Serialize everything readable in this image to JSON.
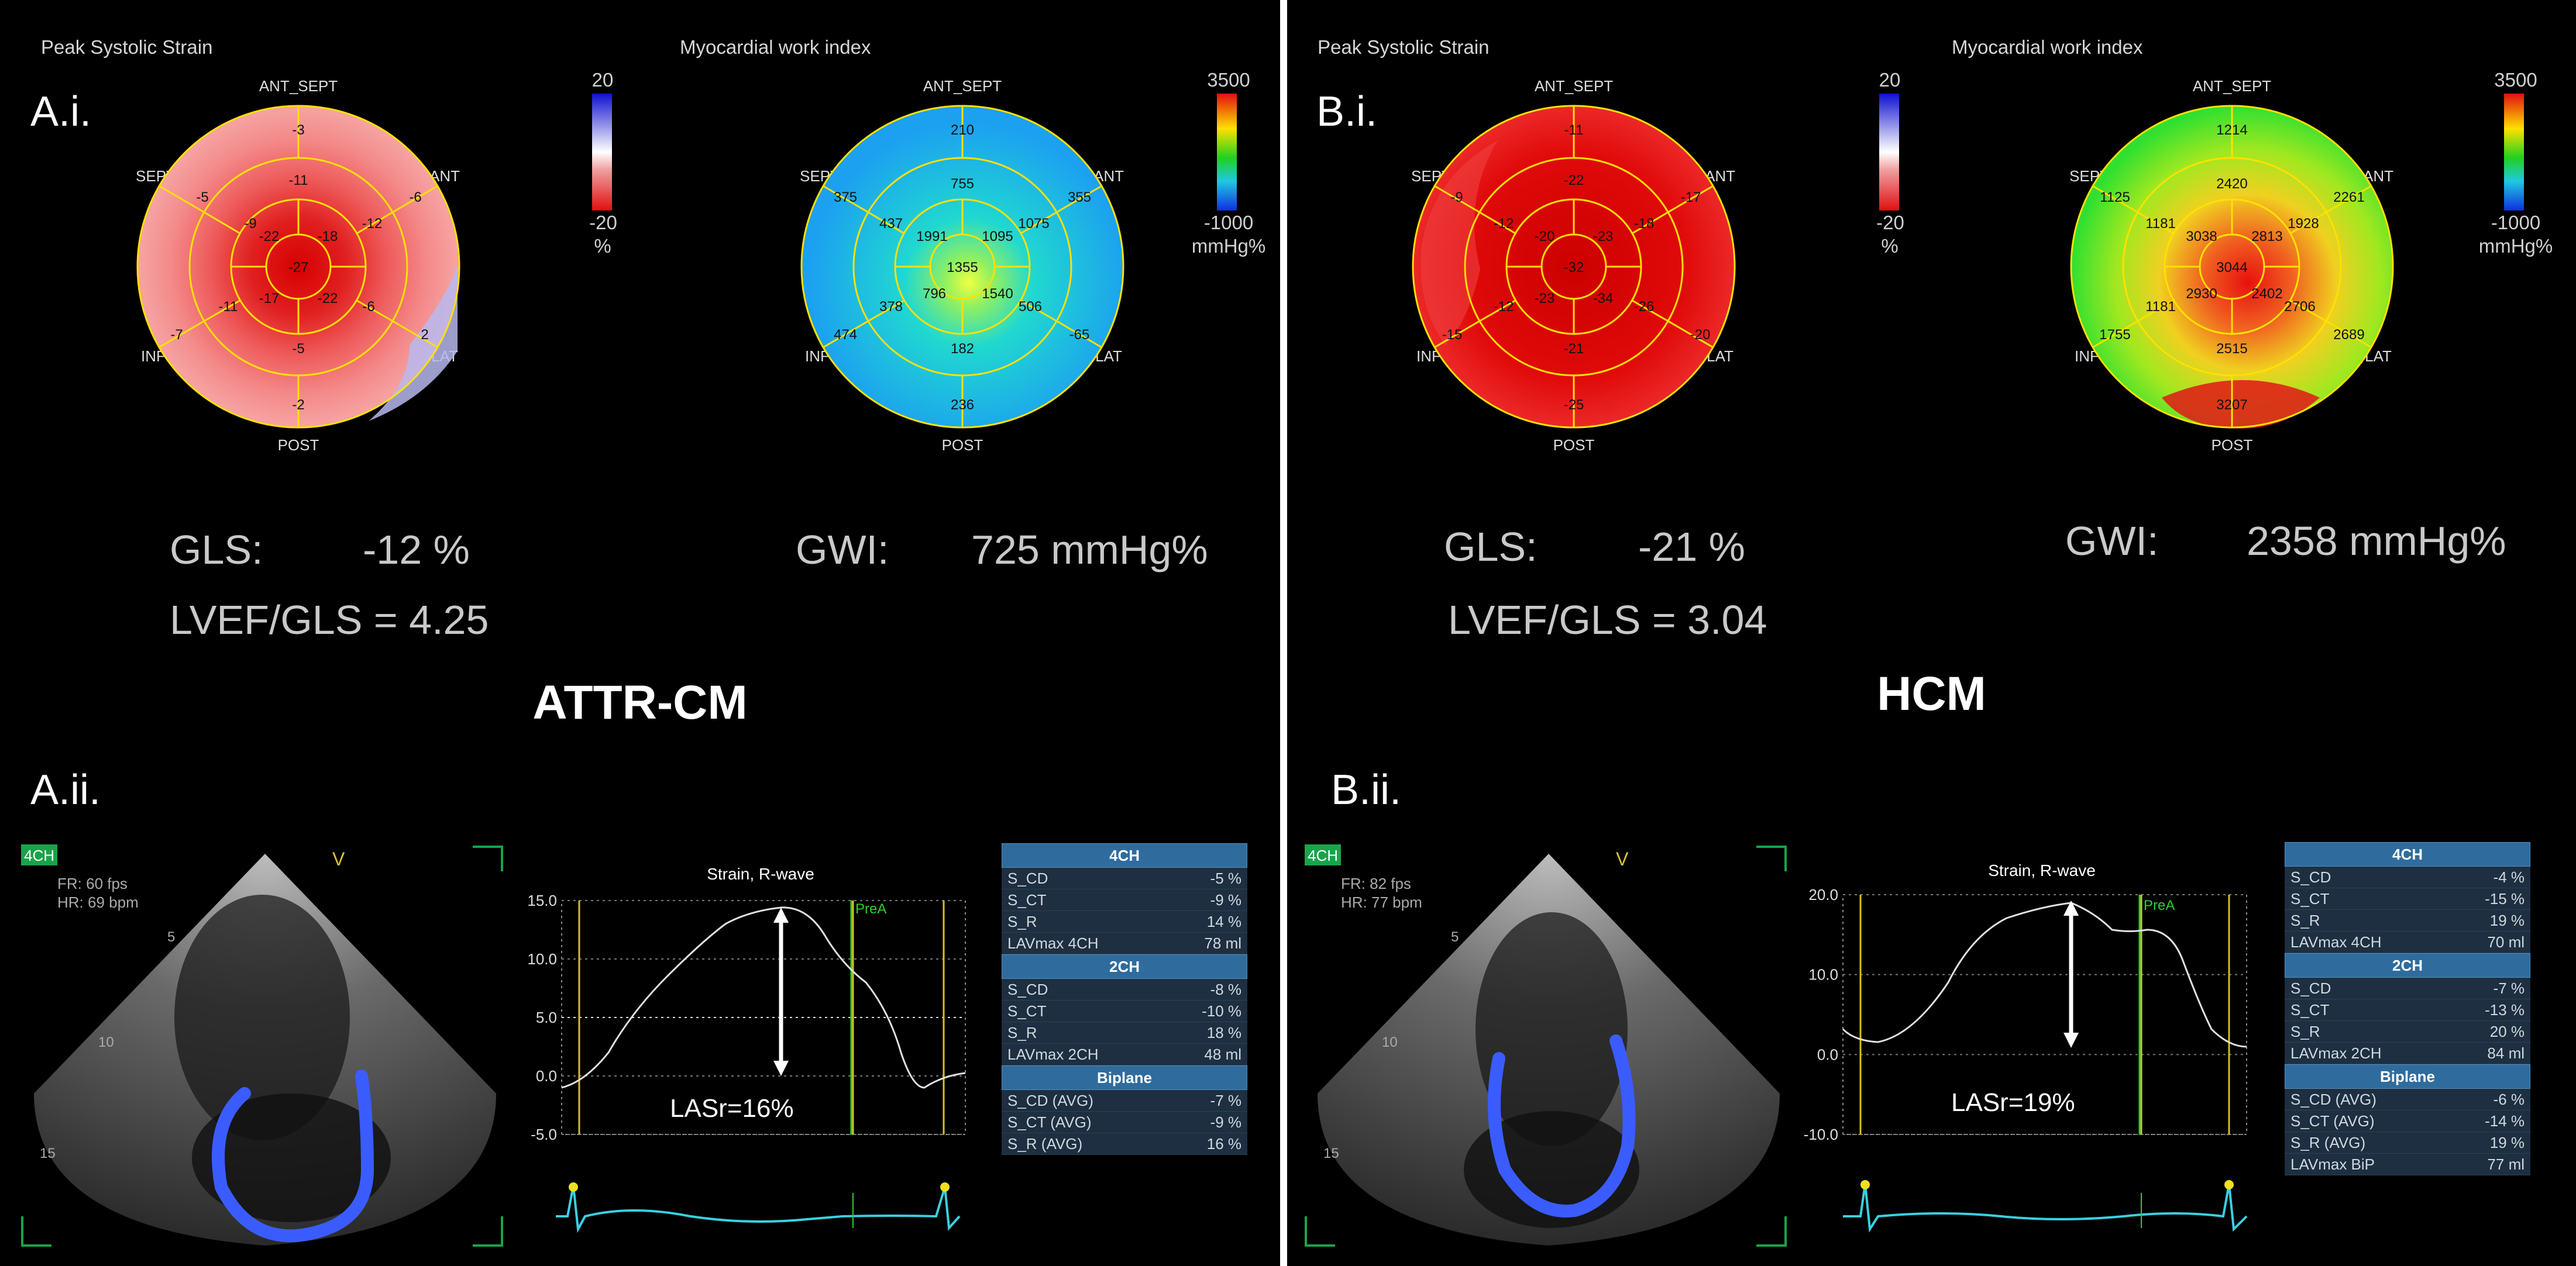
{
  "panel_a": {
    "headers": {
      "strain": "Peak Systolic Strain",
      "work": "Myocardial work index"
    },
    "label_top": "A.i.",
    "label_bottom": "A.ii.",
    "diagnosis": "ATTR-CM",
    "gls_label": "GLS:",
    "gls_value": "-12 %",
    "gwi_label": "GWI:",
    "gwi_value": "725 mmHg%",
    "ratio": "LVEF/GLS = 4.25",
    "strain_scale": {
      "max": "20",
      "min": "-20",
      "unit": "%"
    },
    "work_scale": {
      "max": "3500",
      "min": "-1000",
      "unit": "mmHg%"
    },
    "orientation": {
      "ant_sept": "ANT_SEPT",
      "ant": "ANT",
      "lat": "LAT",
      "post": "POST",
      "inf": "INF",
      "sept": "SEPT"
    },
    "strain_values": {
      "outer": [
        "-3",
        "-6",
        "2",
        "-2",
        "-7",
        "-5"
      ],
      "mid": [
        "-11",
        "-12",
        "-6",
        "-5",
        "-11",
        "-9"
      ],
      "apical": [
        "-18",
        "-22",
        "-17",
        "-22"
      ],
      "apex": "-27"
    },
    "work_values": {
      "outer": [
        "210",
        "355",
        "-65",
        "236",
        "474",
        "375"
      ],
      "mid": [
        "755",
        "1075",
        "506",
        "182",
        "378",
        "437"
      ],
      "apical": [
        "1095",
        "1540",
        "796",
        "1991"
      ],
      "apex": "1355"
    },
    "echo": {
      "view": "4CH",
      "fr": "FR: 60 fps",
      "hr": "HR: 69 bpm",
      "marker": "V",
      "depths": [
        "5",
        "10",
        "15"
      ]
    },
    "graph": {
      "title": "Strain, R-wave",
      "marker": "PreA",
      "lasr": "LASr=16%",
      "ymax": 15,
      "ymin": -5,
      "ticks": [
        "15.0",
        "10.0",
        "5.0",
        "0.0",
        "-5.0"
      ]
    },
    "table": [
      {
        "title": "4CH",
        "rows": [
          [
            "S_CD",
            "-5 %"
          ],
          [
            "S_CT",
            "-9 %"
          ],
          [
            "S_R",
            "14 %"
          ],
          [
            "LAVmax 4CH",
            "78 ml"
          ]
        ]
      },
      {
        "title": "2CH",
        "rows": [
          [
            "S_CD",
            "-8 %"
          ],
          [
            "S_CT",
            "-10 %"
          ],
          [
            "S_R",
            "18 %"
          ],
          [
            "LAVmax 2CH",
            "48 ml"
          ]
        ]
      },
      {
        "title": "Biplane",
        "rows": [
          [
            "S_CD (AVG)",
            "-7 %"
          ],
          [
            "S_CT (AVG)",
            "-9 %"
          ],
          [
            "S_R (AVG)",
            "16 %"
          ]
        ]
      }
    ]
  },
  "panel_b": {
    "headers": {
      "strain": "Peak Systolic Strain",
      "work": "Myocardial work index"
    },
    "label_top": "B.i.",
    "label_bottom": "B.ii.",
    "diagnosis": "HCM",
    "gls_label": "GLS:",
    "gls_value": "-21 %",
    "gwi_label": "GWI:",
    "gwi_value": "2358 mmHg%",
    "ratio": "LVEF/GLS = 3.04",
    "strain_scale": {
      "max": "20",
      "min": "-20",
      "unit": "%"
    },
    "work_scale": {
      "max": "3500",
      "min": "-1000",
      "unit": "mmHg%"
    },
    "orientation": {
      "ant_sept": "ANT_SEPT",
      "ant": "ANT",
      "lat": "LAT",
      "post": "POST",
      "inf": "INF",
      "sept": "SEPT"
    },
    "strain_values": {
      "outer": [
        "-11",
        "-17",
        "-20",
        "-25",
        "-15",
        "-9"
      ],
      "mid": [
        "-22",
        "-18",
        "-26",
        "-21",
        "-12",
        "-12"
      ],
      "apical": [
        "-23",
        "-34",
        "-23",
        "-20"
      ],
      "apex": "-32"
    },
    "work_values": {
      "outer": [
        "1214",
        "2261",
        "2689",
        "3207",
        "1755",
        "1125"
      ],
      "mid": [
        "2420",
        "1928",
        "2706",
        "2515",
        "1181",
        "1181"
      ],
      "apical": [
        "2813",
        "2402",
        "2930",
        "3038"
      ],
      "apex": "3044"
    },
    "echo": {
      "view": "4CH",
      "fr": "FR: 82 fps",
      "hr": "HR: 77 bpm",
      "marker": "V",
      "depths": [
        "5",
        "10",
        "15"
      ]
    },
    "graph": {
      "title": "Strain, R-wave",
      "marker": "PreA",
      "lasr": "LASr=19%",
      "ymax": 20,
      "ymin": -10,
      "ticks": [
        "20.0",
        "10.0",
        "0.0",
        "-10.0"
      ]
    },
    "table": [
      {
        "title": "4CH",
        "rows": [
          [
            "S_CD",
            "-4 %"
          ],
          [
            "S_CT",
            "-15 %"
          ],
          [
            "S_R",
            "19 %"
          ],
          [
            "LAVmax 4CH",
            "70 ml"
          ]
        ]
      },
      {
        "title": "2CH",
        "rows": [
          [
            "S_CD",
            "-7 %"
          ],
          [
            "S_CT",
            "-13 %"
          ],
          [
            "S_R",
            "20 %"
          ],
          [
            "LAVmax 2CH",
            "84 ml"
          ]
        ]
      },
      {
        "title": "Biplane",
        "rows": [
          [
            "S_CD (AVG)",
            "-6 %"
          ],
          [
            "S_CT (AVG)",
            "-14 %"
          ],
          [
            "S_R (AVG)",
            "19 %"
          ],
          [
            "LAVmax BiP",
            "77 ml"
          ]
        ]
      }
    ]
  }
}
